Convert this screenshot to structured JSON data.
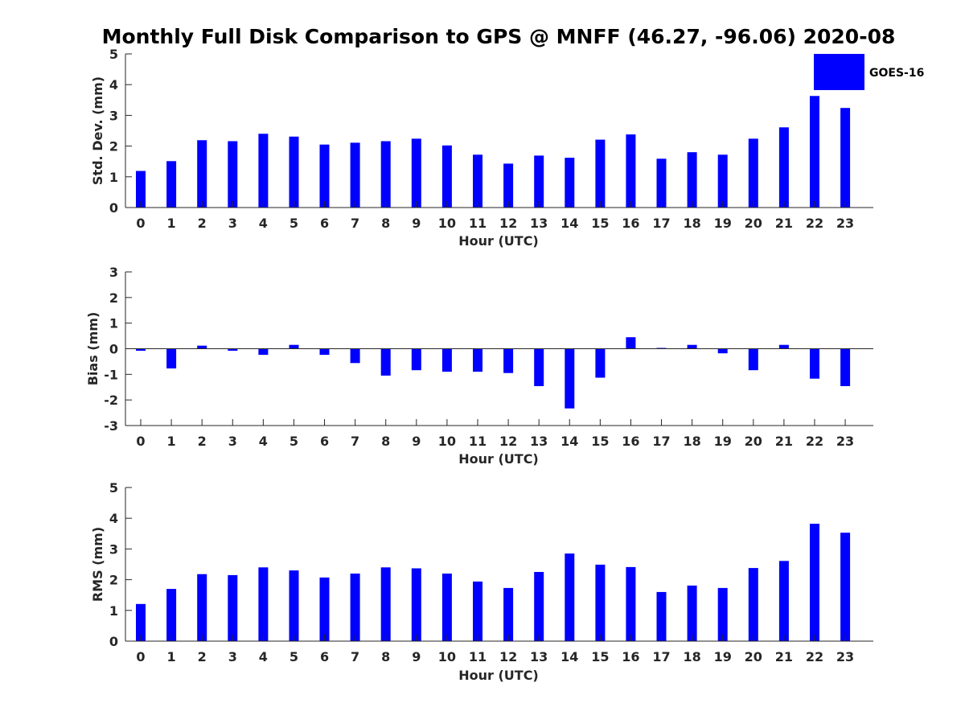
{
  "title": "Monthly Full Disk Comparison to GPS @ MNFF (46.27, -96.06) 2020-08",
  "colors": {
    "bar": "#0000ff",
    "axis": "#262626",
    "background": "#ffffff"
  },
  "legend": {
    "label": "GOES-16",
    "placement": "top-right"
  },
  "chart_data": [
    {
      "type": "bar",
      "title": "Monthly Full Disk Comparison to GPS @ MNFF (46.27, -96.06) 2020-08",
      "xlabel": "Hour (UTC)",
      "ylabel": "Std. Dev. (mm)",
      "ylim": [
        0,
        5
      ],
      "yticks": [
        0,
        1,
        2,
        3,
        4,
        5
      ],
      "categories": [
        "0",
        "1",
        "2",
        "3",
        "4",
        "5",
        "6",
        "7",
        "8",
        "9",
        "10",
        "11",
        "12",
        "13",
        "14",
        "15",
        "16",
        "17",
        "18",
        "19",
        "20",
        "21",
        "22",
        "23"
      ],
      "series": [
        {
          "name": "GOES-16",
          "values": [
            1.19,
            1.51,
            2.19,
            2.16,
            2.4,
            2.31,
            2.05,
            2.11,
            2.16,
            2.24,
            2.02,
            1.72,
            1.43,
            1.69,
            1.62,
            2.21,
            2.38,
            1.59,
            1.8,
            1.72,
            2.24,
            2.61,
            3.63,
            3.24
          ]
        }
      ]
    },
    {
      "type": "bar",
      "xlabel": "Hour (UTC)",
      "ylabel": "Bias (mm)",
      "ylim": [
        -3,
        3
      ],
      "yticks": [
        -3,
        -2,
        -1,
        0,
        1,
        2,
        3
      ],
      "categories": [
        "0",
        "1",
        "2",
        "3",
        "4",
        "5",
        "6",
        "7",
        "8",
        "9",
        "10",
        "11",
        "12",
        "13",
        "14",
        "15",
        "16",
        "17",
        "18",
        "19",
        "20",
        "21",
        "22",
        "23"
      ],
      "series": [
        {
          "name": "GOES-16",
          "values": [
            -0.08,
            -0.77,
            0.12,
            -0.08,
            -0.24,
            0.15,
            -0.24,
            -0.56,
            -1.05,
            -0.84,
            -0.9,
            -0.9,
            -0.95,
            -1.46,
            -2.33,
            -1.13,
            0.45,
            0.03,
            0.15,
            -0.18,
            -0.84,
            0.15,
            -1.17,
            -1.46
          ]
        }
      ]
    },
    {
      "type": "bar",
      "xlabel": "Hour (UTC)",
      "ylabel": "RMS (mm)",
      "ylim": [
        0,
        5
      ],
      "yticks": [
        0,
        1,
        2,
        3,
        4,
        5
      ],
      "categories": [
        "0",
        "1",
        "2",
        "3",
        "4",
        "5",
        "6",
        "7",
        "8",
        "9",
        "10",
        "11",
        "12",
        "13",
        "14",
        "15",
        "16",
        "17",
        "18",
        "19",
        "20",
        "21",
        "22",
        "23"
      ],
      "series": [
        {
          "name": "GOES-16",
          "values": [
            1.21,
            1.7,
            2.18,
            2.15,
            2.4,
            2.3,
            2.07,
            2.2,
            2.4,
            2.37,
            2.2,
            1.94,
            1.73,
            2.25,
            2.85,
            2.49,
            2.41,
            1.6,
            1.81,
            1.73,
            2.38,
            2.61,
            3.82,
            3.53
          ]
        }
      ]
    }
  ]
}
